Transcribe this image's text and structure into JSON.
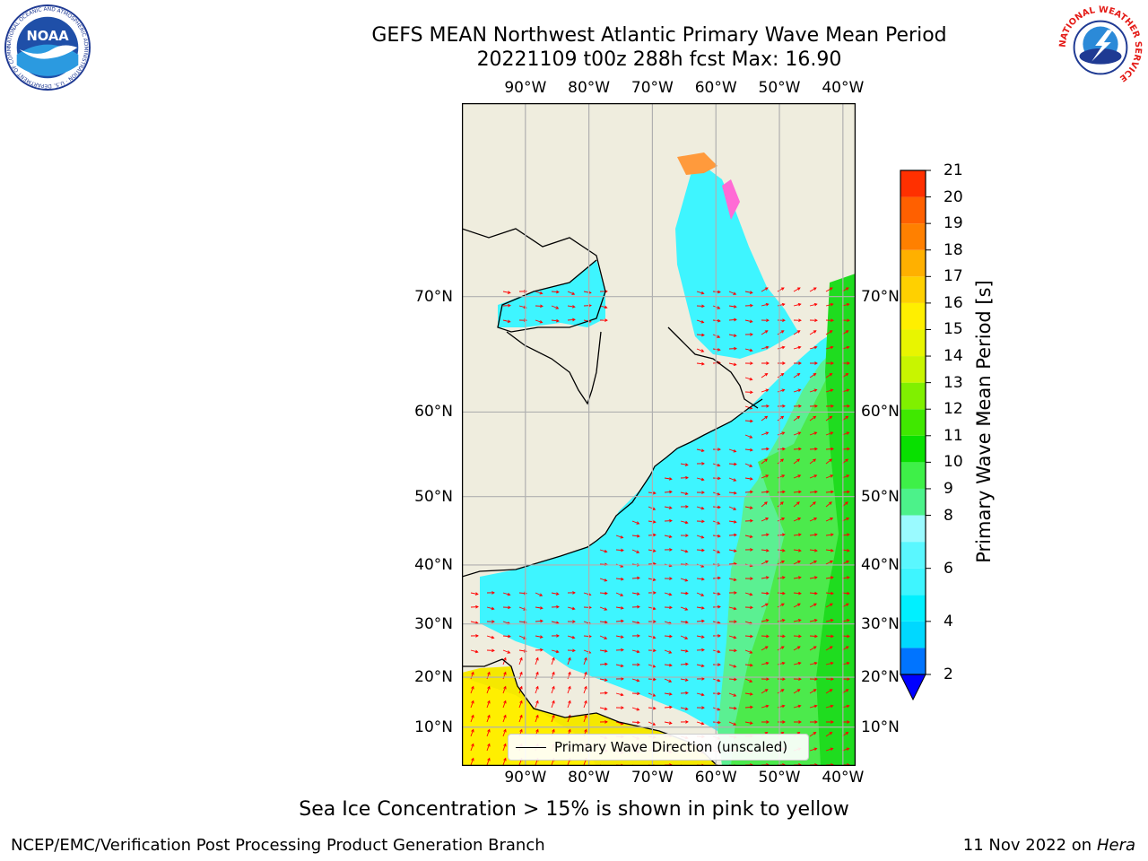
{
  "title_line1": "GEFS MEAN Northwest Atlantic Primary Wave Mean Period",
  "title_line2": "20221109 t00z 288h fcst   Max: 16.90",
  "logos": {
    "left": {
      "name": "noaa-logo",
      "text": "NOAA",
      "ring_text": "NATIONAL OCEANIC AND ATMOSPHERIC ADMINISTRATION · U.S. DEPARTMENT OF COMMERCE"
    },
    "right": {
      "name": "nws-logo",
      "ring_text": "NATIONAL WEATHER SERVICE"
    }
  },
  "map": {
    "lon_labels": [
      "90°W",
      "80°W",
      "70°W",
      "60°W",
      "50°W",
      "40°W"
    ],
    "lat_labels": [
      "70°N",
      "60°N",
      "50°N",
      "40°N",
      "30°N",
      "20°N",
      "10°N"
    ],
    "lon_values": [
      -90,
      -80,
      -70,
      -60,
      -50,
      -40
    ],
    "lat_values": [
      70,
      60,
      50,
      40,
      30,
      20,
      10
    ],
    "lon_range": [
      -100,
      -38
    ],
    "lat_range": [
      2,
      80
    ],
    "grid": true,
    "colors": {
      "land": "#efedde",
      "ice_sheet": "#ffffff",
      "coast": "#000000",
      "arrow": "#ff0000",
      "grid": "#b0b0b0"
    }
  },
  "colorbar": {
    "label": "Primary Wave Mean Period [s]",
    "tick_labels": [
      "2",
      "4",
      "6",
      "8",
      "9",
      "10",
      "11",
      "12",
      "13",
      "14",
      "15",
      "16",
      "17",
      "18",
      "19",
      "20",
      "21"
    ],
    "levels": [
      2,
      3,
      4,
      5,
      6,
      7,
      8,
      9,
      10,
      11,
      12,
      13,
      14,
      15,
      16,
      17,
      18,
      19,
      20,
      21
    ],
    "colors": [
      "#0074ff",
      "#00d8ff",
      "#00f0ff",
      "#3ef5ff",
      "#5af7ff",
      "#9afaff",
      "#4cf28a",
      "#3ef048",
      "#08e000",
      "#40e800",
      "#80f000",
      "#c8f500",
      "#e8f500",
      "#ffef00",
      "#ffd000",
      "#ffb000",
      "#ff8000",
      "#ff6000",
      "#ff3000",
      "#ff0000"
    ],
    "under_color": "#0000ff"
  },
  "legend": {
    "label": "Primary Wave Direction (unscaled)"
  },
  "sea_ice_note": "Sea Ice Concentration > 15% is shown in pink to yellow",
  "footer": {
    "left": "NCEP/EMC/Verification Post Processing Product Generation Branch",
    "date": "11 Nov 2022 on",
    "host": "Hera"
  }
}
